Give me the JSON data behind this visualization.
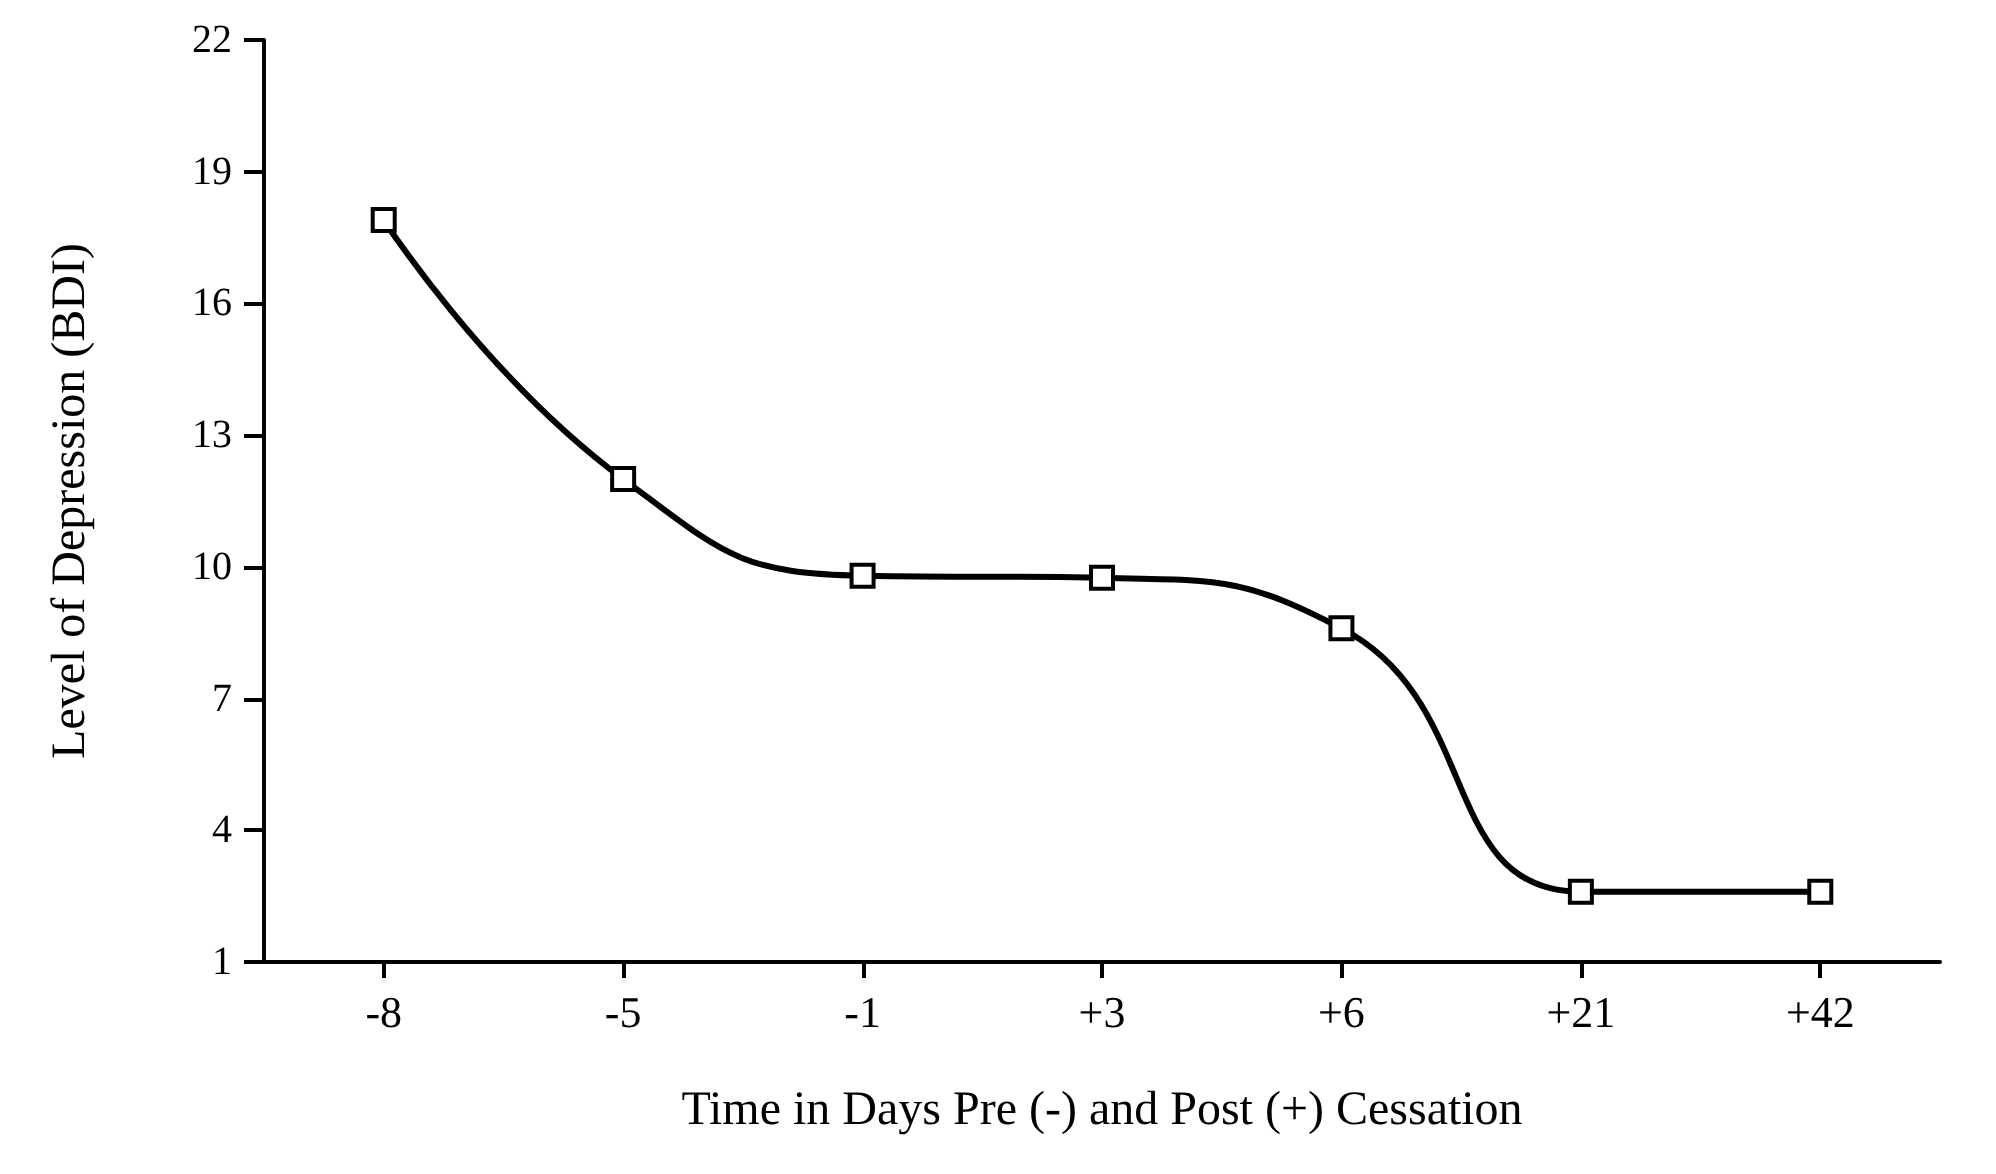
{
  "chart_data": {
    "type": "line",
    "xlabel": "Time in Days Pre (-) and Post (+) Cessation",
    "ylabel": "Level of Depression (BDI)",
    "categories": [
      "-8",
      "-5",
      "-1",
      "+3",
      "+6",
      "+21",
      "+42"
    ],
    "series": [
      {
        "color": "#000000",
        "values": [
          17.9,
          12,
          9.8,
          9.75,
          8.6,
          2.6,
          2.6
        ]
      }
    ],
    "ylim": [
      1,
      22
    ],
    "yticks": [
      1,
      4,
      7,
      10,
      13,
      16,
      19,
      22
    ],
    "grid": false,
    "marker": "square",
    "line_style": "solid"
  }
}
